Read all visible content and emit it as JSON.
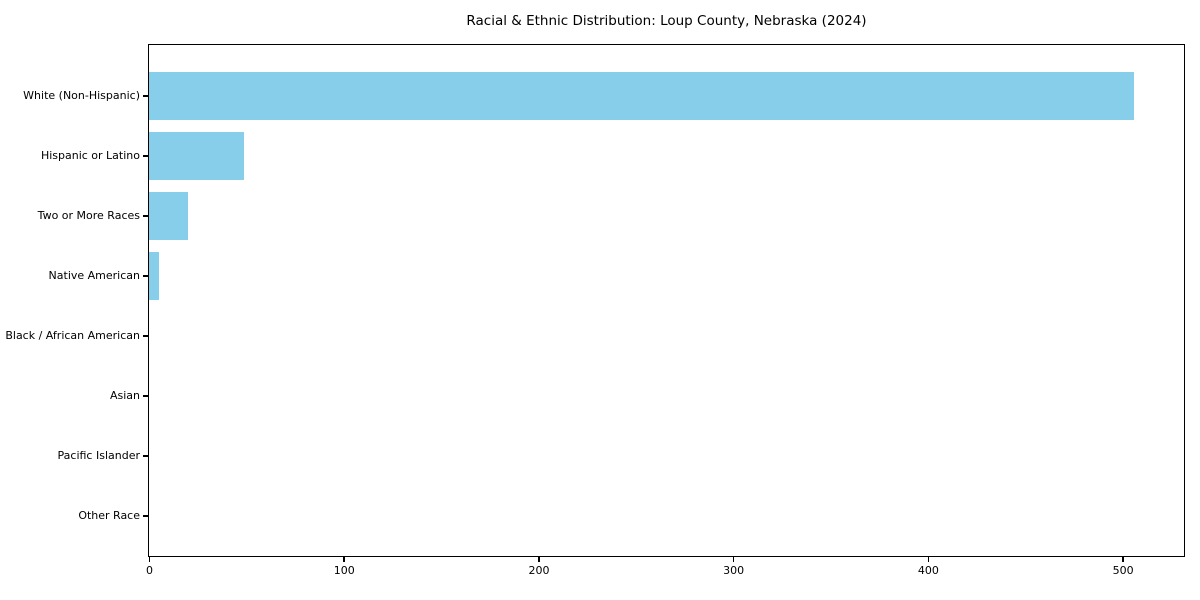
{
  "figure": {
    "background": "#ffffff",
    "border_color": "#000000",
    "text_color": "#000000"
  },
  "chart_data": {
    "type": "bar",
    "orientation": "horizontal",
    "title": "Racial & Ethnic Distribution: Loup County, Nebraska (2024)",
    "xlabel": "",
    "ylabel": "",
    "categories": [
      "White (Non-Hispanic)",
      "Hispanic or Latino",
      "Two or More Races",
      "Native American",
      "Black / African American",
      "Asian",
      "Pacific Islander",
      "Other Race"
    ],
    "values": [
      506,
      49,
      20,
      5,
      0,
      0,
      0,
      0
    ],
    "bar_color": "#87CEEB",
    "xlim": [
      0,
      531
    ],
    "xticks": [
      0,
      100,
      200,
      300,
      400,
      500
    ],
    "grid": false,
    "legend": null
  }
}
